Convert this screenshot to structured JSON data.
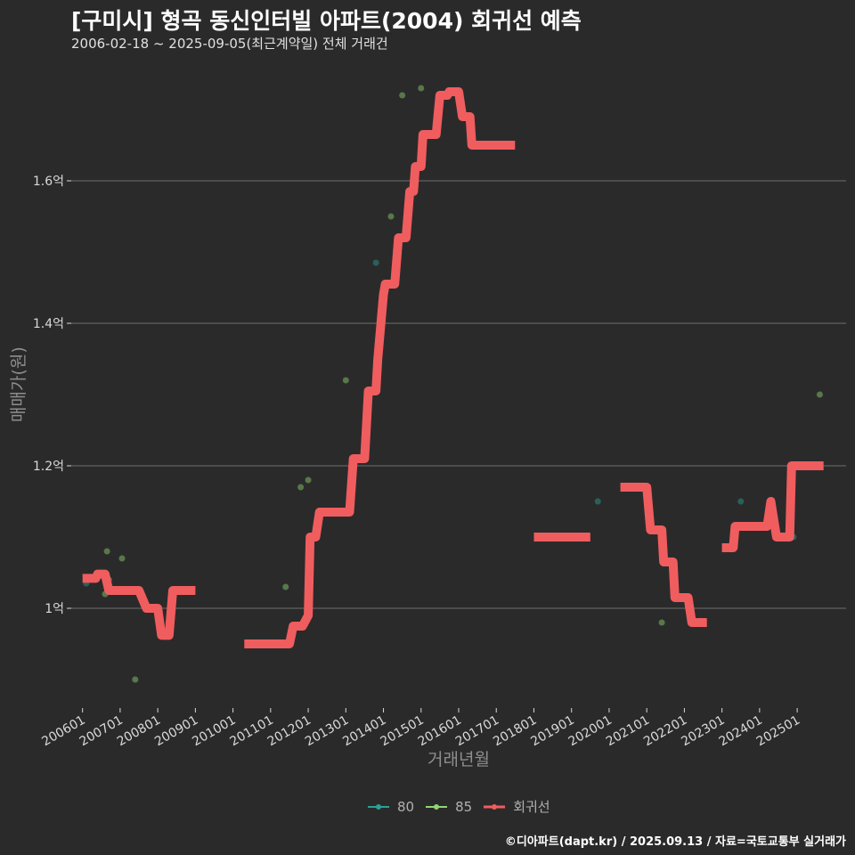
{
  "header": {
    "title": "[구미시] 형곡 동신인터빌 아파트(2004) 회귀선 예측",
    "subtitle": "2006-02-18 ~ 2025-09-05(최근계약일) 전체 거래건"
  },
  "credit": "©디아파트(dapt.kr) / 2025.09.13 / 자료=국토교통부 실거래가",
  "colors": {
    "bg": "#2b2a2b",
    "grid": "#6f6f6f",
    "s80": "#2aa198",
    "s85": "#8fd672",
    "reg": "#f05d5e"
  },
  "chart_data": {
    "type": "scatter",
    "xlabel": "거래년월",
    "ylabel": "매매가(원)",
    "xlim": [
      2005.7,
      2026.3
    ],
    "ylim": [
      0.86,
      1.76
    ],
    "y_ticks": [
      1.0,
      1.2,
      1.4,
      1.6
    ],
    "y_tick_labels": [
      "1억",
      "1.2억",
      "1.4억",
      "1.6억"
    ],
    "x_ticks": [
      2006,
      2007,
      2008,
      2009,
      2010,
      2011,
      2012,
      2013,
      2014,
      2015,
      2016,
      2017,
      2018,
      2019,
      2020,
      2021,
      2022,
      2023,
      2024,
      2025
    ],
    "x_tick_labels": [
      "200601",
      "200701",
      "200801",
      "200901",
      "201001",
      "201101",
      "201201",
      "201301",
      "201401",
      "201501",
      "201601",
      "201701",
      "201801",
      "201901",
      "202001",
      "202101",
      "202201",
      "202301",
      "202401",
      "202501"
    ],
    "legend": [
      "80",
      "85",
      "회귀선"
    ],
    "series": [
      {
        "name": "80",
        "points": [
          [
            2006.1,
            1.035
          ],
          [
            2013.8,
            1.485
          ],
          [
            2019.7,
            1.15
          ],
          [
            2023.5,
            1.15
          ],
          [
            2024.9,
            1.1
          ]
        ]
      },
      {
        "name": "85",
        "points": [
          [
            2006.6,
            1.02
          ],
          [
            2006.7,
            1.04
          ],
          [
            2006.65,
            1.08
          ],
          [
            2007.05,
            1.07
          ],
          [
            2007.4,
            0.9
          ],
          [
            2011.4,
            1.03
          ],
          [
            2011.8,
            1.17
          ],
          [
            2012.0,
            1.18
          ],
          [
            2013.0,
            1.32
          ],
          [
            2014.2,
            1.55
          ],
          [
            2014.5,
            1.72
          ],
          [
            2015.0,
            1.73
          ],
          [
            2021.4,
            0.98
          ],
          [
            2023.3,
            1.085
          ],
          [
            2025.6,
            1.3
          ]
        ]
      },
      {
        "name": "회귀선",
        "segments": [
          [
            [
              2006.0,
              1.042
            ],
            [
              2006.35,
              1.042
            ],
            [
              2006.4,
              1.048
            ],
            [
              2006.6,
              1.048
            ],
            [
              2006.7,
              1.025
            ],
            [
              2007.0,
              1.025
            ],
            [
              2007.5,
              1.025
            ],
            [
              2007.7,
              1.0
            ],
            [
              2008.0,
              1.0
            ],
            [
              2008.1,
              0.962
            ],
            [
              2008.3,
              0.962
            ],
            [
              2008.4,
              1.025
            ],
            [
              2009.0,
              1.025
            ]
          ],
          [
            [
              2010.3,
              0.95
            ],
            [
              2011.5,
              0.95
            ],
            [
              2011.6,
              0.975
            ],
            [
              2011.85,
              0.975
            ],
            [
              2012.0,
              0.99
            ],
            [
              2012.05,
              1.1
            ],
            [
              2012.2,
              1.1
            ],
            [
              2012.3,
              1.135
            ],
            [
              2013.1,
              1.135
            ],
            [
              2013.2,
              1.21
            ],
            [
              2013.5,
              1.21
            ],
            [
              2013.6,
              1.305
            ],
            [
              2013.8,
              1.305
            ],
            [
              2013.85,
              1.35
            ],
            [
              2014.0,
              1.44
            ],
            [
              2014.05,
              1.455
            ],
            [
              2014.3,
              1.455
            ],
            [
              2014.4,
              1.52
            ],
            [
              2014.6,
              1.52
            ],
            [
              2014.7,
              1.585
            ],
            [
              2014.8,
              1.585
            ],
            [
              2014.85,
              1.62
            ],
            [
              2015.0,
              1.62
            ],
            [
              2015.05,
              1.665
            ],
            [
              2015.4,
              1.665
            ],
            [
              2015.5,
              1.72
            ],
            [
              2015.7,
              1.72
            ],
            [
              2015.75,
              1.725
            ],
            [
              2016.0,
              1.725
            ],
            [
              2016.1,
              1.69
            ],
            [
              2016.3,
              1.69
            ],
            [
              2016.35,
              1.65
            ],
            [
              2017.5,
              1.65
            ]
          ],
          [
            [
              2018.0,
              1.1
            ],
            [
              2019.5,
              1.1
            ]
          ],
          [
            [
              2020.3,
              1.17
            ],
            [
              2021.0,
              1.17
            ],
            [
              2021.1,
              1.11
            ],
            [
              2021.4,
              1.11
            ],
            [
              2021.45,
              1.065
            ],
            [
              2021.7,
              1.065
            ],
            [
              2021.75,
              1.015
            ],
            [
              2022.1,
              1.015
            ],
            [
              2022.2,
              0.98
            ],
            [
              2022.6,
              0.98
            ]
          ],
          [
            [
              2023.0,
              1.085
            ],
            [
              2023.3,
              1.085
            ],
            [
              2023.35,
              1.115
            ],
            [
              2024.2,
              1.115
            ],
            [
              2024.3,
              1.15
            ],
            [
              2024.45,
              1.1
            ],
            [
              2024.8,
              1.1
            ],
            [
              2024.85,
              1.2
            ],
            [
              2025.7,
              1.2
            ]
          ]
        ]
      }
    ]
  }
}
